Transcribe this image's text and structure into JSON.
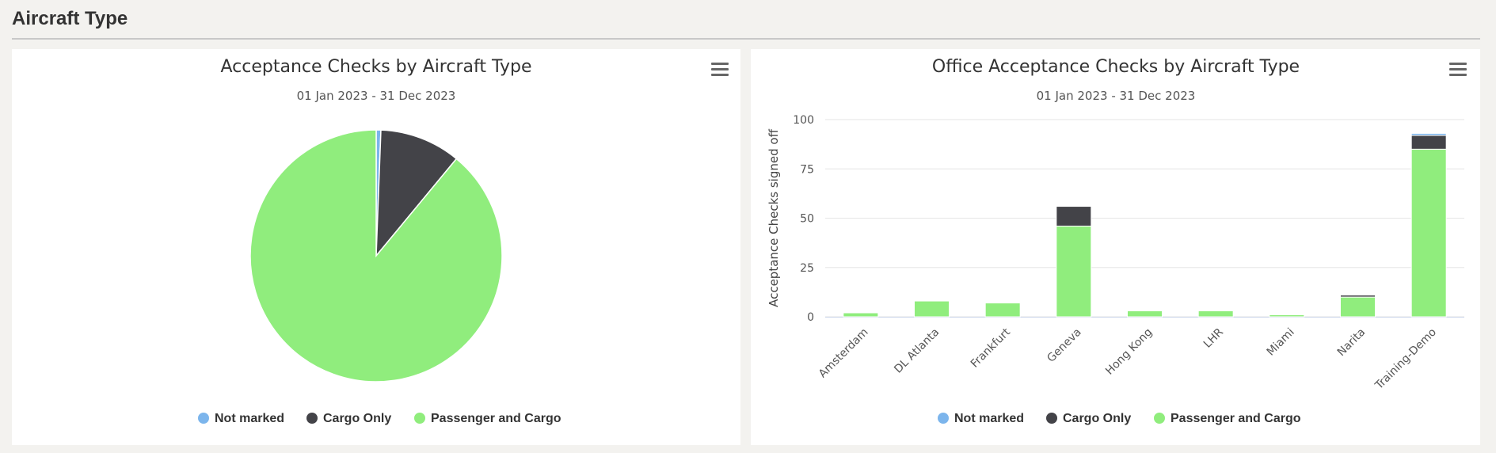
{
  "page": {
    "section_title": "Aircraft Type"
  },
  "colors": {
    "not_marked": "#7cb5ec",
    "cargo_only": "#434348",
    "passenger_and_cargo": "#90ed7d",
    "grid": "#e6e6e6"
  },
  "icons": {
    "menu": "hamburger-menu-icon"
  },
  "chart_data": [
    {
      "type": "pie",
      "title": "Acceptance Checks by Aircraft Type",
      "subtitle": "01 Jan 2023 - 31 Dec 2023",
      "legend_position": "bottom",
      "series": [
        {
          "name": "Not marked",
          "value": 0.6
        },
        {
          "name": "Cargo Only",
          "value": 10.4
        },
        {
          "name": "Passenger and Cargo",
          "value": 89.0
        }
      ]
    },
    {
      "type": "bar",
      "stacked": true,
      "title": "Office Acceptance Checks by Aircraft Type",
      "subtitle": "01 Jan 2023 - 31 Dec 2023",
      "ylabel": "Acceptance Checks signed off",
      "xlabel": "",
      "ylim": [
        0,
        100
      ],
      "yticks": [
        0,
        25,
        50,
        75,
        100
      ],
      "grid": true,
      "legend_position": "bottom",
      "categories": [
        "Amsterdam",
        "DL Atlanta",
        "Frankfurt",
        "Geneva",
        "Hong Kong",
        "LHR",
        "Miami",
        "Narita",
        "Training-Demo"
      ],
      "series": [
        {
          "name": "Not marked",
          "values": [
            0,
            0,
            0,
            0,
            0,
            0,
            0,
            0,
            1
          ]
        },
        {
          "name": "Cargo Only",
          "values": [
            0,
            0,
            0,
            10,
            0,
            0,
            0,
            1,
            7
          ]
        },
        {
          "name": "Passenger and Cargo",
          "values": [
            2,
            8,
            7,
            46,
            3,
            3,
            1,
            10,
            85
          ]
        }
      ]
    }
  ]
}
